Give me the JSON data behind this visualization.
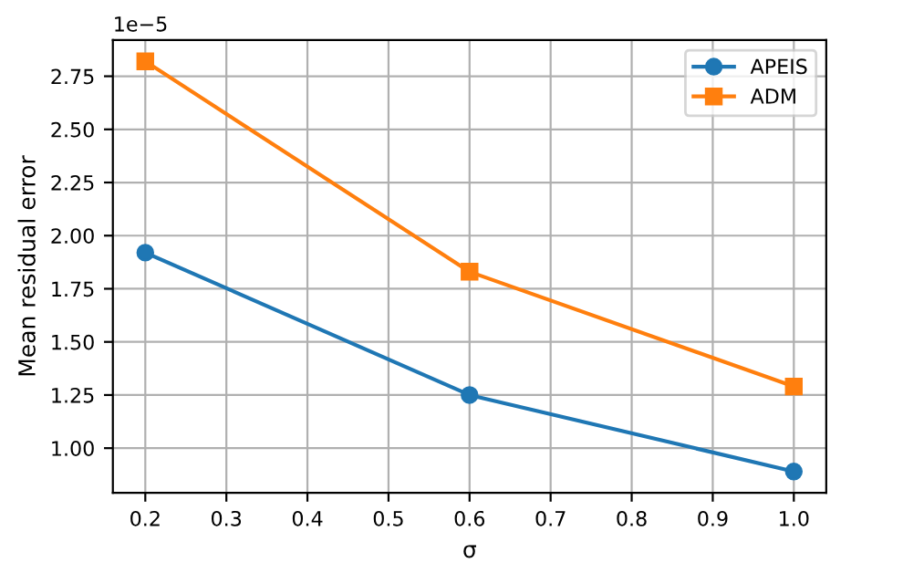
{
  "chart_data": {
    "type": "line",
    "xlabel": "σ",
    "ylabel": "Mean residual error",
    "x": [
      0.2,
      0.6,
      1.0
    ],
    "series": [
      {
        "name": "APEIS",
        "color": "#1f77b4",
        "marker": "circle",
        "values": [
          1.92,
          1.25,
          0.89
        ]
      },
      {
        "name": "ADM",
        "color": "#ff7f0e",
        "marker": "square",
        "values": [
          2.82,
          1.83,
          1.29
        ]
      }
    ],
    "xlim": [
      0.16,
      1.04
    ],
    "ylim": [
      0.79,
      2.92
    ],
    "xticks": [
      {
        "value": 0.2,
        "label": "0.2"
      },
      {
        "value": 0.3,
        "label": "0.3"
      },
      {
        "value": 0.4,
        "label": "0.4"
      },
      {
        "value": 0.5,
        "label": "0.5"
      },
      {
        "value": 0.6,
        "label": "0.6"
      },
      {
        "value": 0.7,
        "label": "0.7"
      },
      {
        "value": 0.8,
        "label": "0.8"
      },
      {
        "value": 0.9,
        "label": "0.9"
      },
      {
        "value": 1.0,
        "label": "1.0"
      }
    ],
    "yticks": [
      {
        "value": 1.0,
        "label": "1.00"
      },
      {
        "value": 1.25,
        "label": "1.25"
      },
      {
        "value": 1.5,
        "label": "1.50"
      },
      {
        "value": 1.75,
        "label": "1.75"
      },
      {
        "value": 2.0,
        "label": "2.00"
      },
      {
        "value": 2.25,
        "label": "2.25"
      },
      {
        "value": 2.5,
        "label": "2.50"
      },
      {
        "value": 2.75,
        "label": "2.75"
      }
    ],
    "annotations": [
      "1e−5"
    ],
    "grid": true,
    "legend": "top right",
    "line_style": "solid"
  }
}
